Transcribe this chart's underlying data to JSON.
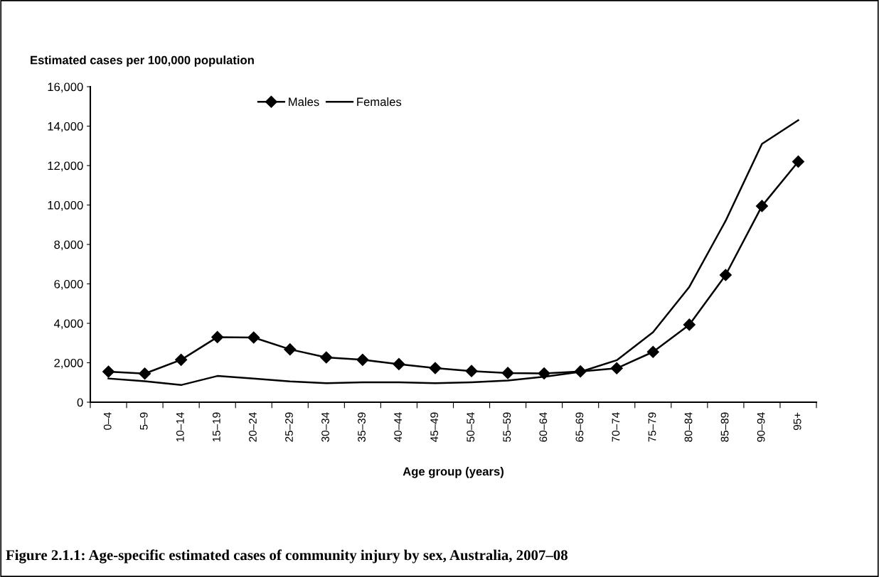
{
  "chart_data": {
    "type": "line",
    "title": "Figure 2.1.1: Age-specific estimated cases of community injury by sex, Australia, 2007–08",
    "ylabel": "Estimated cases per 100,000 population",
    "xlabel": "Age group (years)",
    "categories": [
      "0–4",
      "5–9",
      "10–14",
      "15–19",
      "20–24",
      "25–29",
      "30–34",
      "35–39",
      "40–44",
      "45–49",
      "50–54",
      "55–59",
      "60–64",
      "65–69",
      "70–74",
      "75–79",
      "80–84",
      "85–89",
      "90–94",
      "95+"
    ],
    "series": [
      {
        "name": "Males",
        "color": "#000000",
        "marker": "diamond",
        "values": [
          1550,
          1450,
          2150,
          3300,
          3280,
          2680,
          2270,
          2150,
          1930,
          1730,
          1580,
          1480,
          1460,
          1560,
          1720,
          2550,
          3930,
          6450,
          9950,
          12200
        ]
      },
      {
        "name": "Females",
        "color": "#000000",
        "marker": "none",
        "values": [
          1200,
          1060,
          870,
          1330,
          1200,
          1050,
          960,
          1010,
          1010,
          960,
          1010,
          1100,
          1290,
          1540,
          2130,
          3550,
          5850,
          9200,
          13100,
          14300
        ]
      }
    ],
    "ylim": [
      0,
      16000
    ],
    "yticks": [
      {
        "value": 0,
        "label": "0"
      },
      {
        "value": 2000,
        "label": "2,000"
      },
      {
        "value": 4000,
        "label": "4,000"
      },
      {
        "value": 6000,
        "label": "6,000"
      },
      {
        "value": 8000,
        "label": "8,000"
      },
      {
        "value": 10000,
        "label": "10,000"
      },
      {
        "value": 12000,
        "label": "12,000"
      },
      {
        "value": 14000,
        "label": "14,000"
      },
      {
        "value": 16000,
        "label": "16,000"
      }
    ],
    "grid": false,
    "legend": "top",
    "line_style": "solid"
  }
}
